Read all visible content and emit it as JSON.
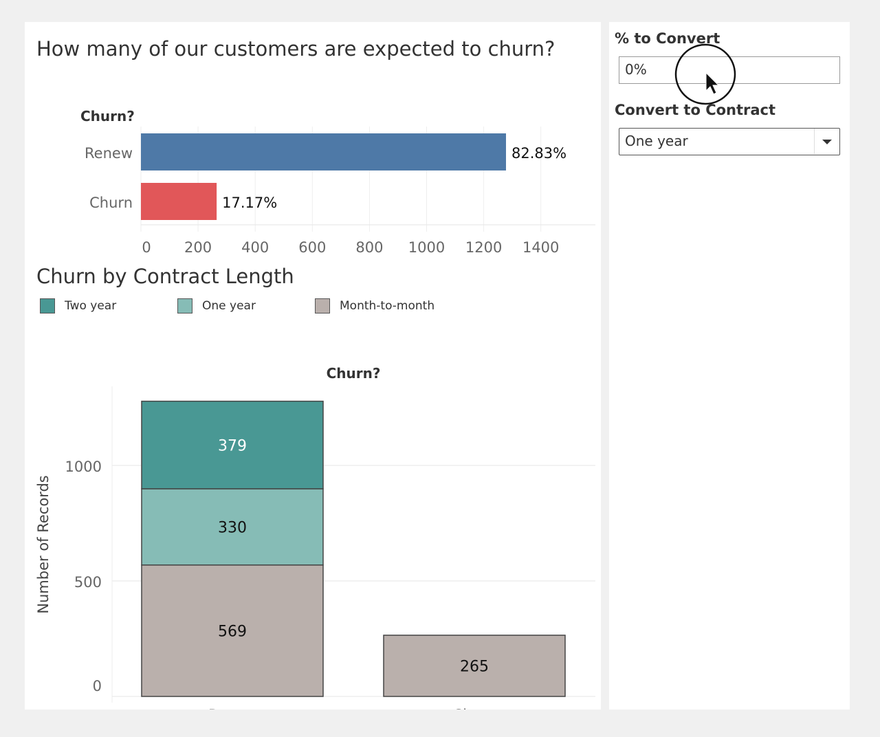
{
  "dashboard": {
    "title_top": "How many of our customers are expected to churn?",
    "title_bottom": "Churn by Contract Length"
  },
  "controls": {
    "percent_label": "% to Convert",
    "percent_value": "0%",
    "contract_label": "Convert to Contract",
    "contract_value": "One year"
  },
  "legend": [
    {
      "label": "Two year",
      "color": "#499894"
    },
    {
      "label": "One year",
      "color": "#86bcb6"
    },
    {
      "label": "Month-to-month",
      "color": "#bab0ac"
    }
  ],
  "chart_data": [
    {
      "type": "bar",
      "orientation": "horizontal",
      "ylabel": "Churn?",
      "categories": [
        "Renew",
        "Churn"
      ],
      "values": [
        1278,
        265
      ],
      "data_labels": [
        "82.83%",
        "17.17%"
      ],
      "colors": [
        "#4e79a7",
        "#e15759"
      ],
      "xlim": [
        0,
        1550
      ],
      "xticks": [
        0,
        200,
        400,
        600,
        800,
        1000,
        1200,
        1400
      ],
      "grid": true
    },
    {
      "type": "bar",
      "stacked": true,
      "title": "Churn?",
      "ylabel": "Number of Records",
      "categories": [
        "Renew",
        "Churn"
      ],
      "series": [
        {
          "name": "Month-to-month",
          "values": [
            569,
            265
          ],
          "color": "#bab0ac"
        },
        {
          "name": "One year",
          "values": [
            330,
            0
          ],
          "color": "#86bcb6"
        },
        {
          "name": "Two year",
          "values": [
            379,
            0
          ],
          "color": "#499894"
        }
      ],
      "ylim": [
        0,
        1300
      ],
      "yticks": [
        0,
        500,
        1000
      ],
      "grid": true,
      "legend": "top-left"
    }
  ]
}
